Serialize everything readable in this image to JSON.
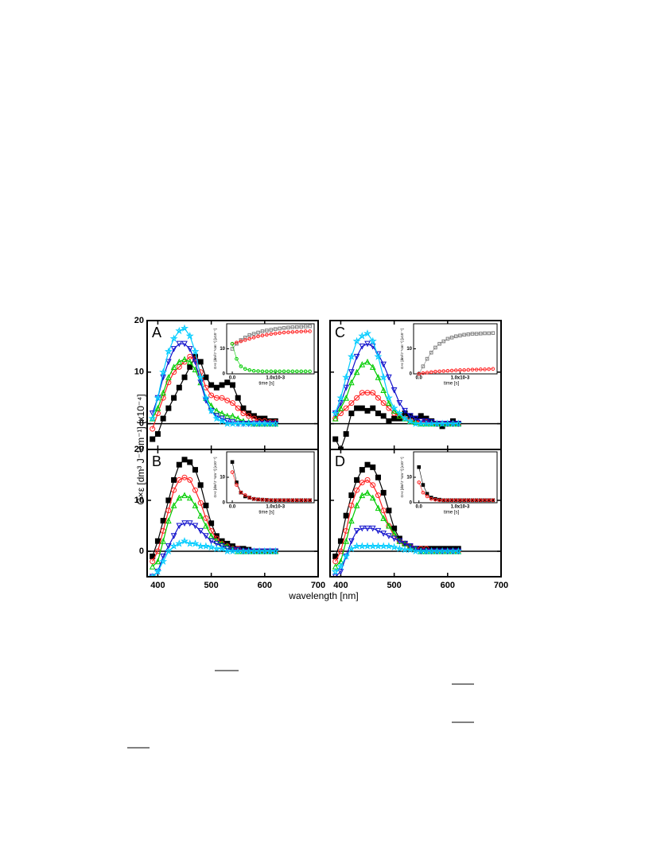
{
  "figure": {
    "xlabel": "wavelength [nm]",
    "ylabel": "G×ε [dm³ J⁻¹cm⁻¹] [x10⁻⁴]"
  },
  "chart_data": [
    {
      "type": "line",
      "label": "A",
      "xlim": [
        380,
        700
      ],
      "ylim": [
        -5,
        20
      ],
      "yticks": [
        0,
        10,
        20
      ],
      "x": [
        390,
        400,
        410,
        420,
        430,
        440,
        450,
        460,
        470,
        480,
        490,
        500,
        510,
        520,
        530,
        540,
        550,
        560,
        570,
        580,
        590,
        600,
        610,
        620
      ],
      "series": [
        {
          "color": "#000000",
          "marker": "square",
          "values": [
            -3,
            -2,
            1,
            3,
            5,
            7,
            9,
            11,
            13,
            12,
            9,
            7.5,
            7,
            7.5,
            8,
            7.5,
            5,
            3,
            2,
            1.5,
            1,
            1,
            0.5,
            0.5
          ]
        },
        {
          "color": "#ff2020",
          "marker": "circle",
          "values": [
            -1,
            2,
            5,
            8,
            10,
            11,
            12,
            13,
            12.5,
            10,
            7,
            5.5,
            5,
            5,
            4.5,
            4,
            3,
            2,
            1.5,
            1,
            0.5,
            0.5,
            0.3,
            0.3
          ]
        },
        {
          "color": "#00cc00",
          "marker": "triangle",
          "values": [
            1,
            3,
            6,
            9,
            11,
            12,
            12.5,
            12,
            10.5,
            8,
            5,
            3.5,
            2.5,
            2,
            1.5,
            1.5,
            1,
            0.5,
            0.3,
            0,
            0,
            0,
            0,
            0
          ]
        },
        {
          "color": "#1010cc",
          "marker": "down",
          "values": [
            2,
            5,
            9,
            12,
            14.5,
            15.5,
            15.5,
            14.5,
            12,
            8,
            4.5,
            2.5,
            1.5,
            1,
            0.5,
            0.3,
            0,
            0,
            0,
            0,
            0,
            0,
            0,
            0
          ]
        },
        {
          "color": "#00ccff",
          "marker": "star",
          "values": [
            1,
            5,
            10,
            14,
            16.5,
            18,
            18.5,
            17,
            14,
            9,
            5,
            2.5,
            1,
            0.5,
            0,
            0,
            0,
            0,
            0,
            0,
            0,
            0,
            0,
            0
          ]
        }
      ],
      "inset": {
        "xlabel": "time [s]",
        "ylabel": "G×ε [dm³J⁻¹cm⁻¹] [x10⁻⁴]",
        "xlim": [
          -0.00013,
          0.0019
        ],
        "ylim": [
          0,
          20
        ],
        "xticks": [
          {
            "value": 0,
            "label": "0.0"
          },
          {
            "value": 0.001,
            "label": "1.0x10-3"
          }
        ],
        "yticks": [
          0,
          10
        ],
        "x": [
          0,
          0.0001,
          0.0002,
          0.0003,
          0.0004,
          0.0005,
          0.0006,
          0.0007,
          0.0008,
          0.0009,
          0.001,
          0.0011,
          0.0012,
          0.0013,
          0.0014,
          0.0015,
          0.0016,
          0.0017,
          0.0018
        ],
        "series": [
          {
            "color": "#808080",
            "marker": "square",
            "values": [
              10,
              12,
              13.5,
              14.5,
              15.5,
              16,
              16.5,
              17,
              17.3,
              17.6,
              17.9,
              18.1,
              18.3,
              18.5,
              18.6,
              18.7,
              18.8,
              18.9,
              19
            ]
          },
          {
            "color": "#ff2020",
            "marker": "circle",
            "values": [
              12,
              12.5,
              13,
              13.5,
              14,
              14.5,
              15,
              15.3,
              15.6,
              15.9,
              16.1,
              16.3,
              16.5,
              16.6,
              16.7,
              16.8,
              16.9,
              17,
              17
            ]
          },
          {
            "color": "#00cc00",
            "marker": "circle",
            "values": [
              12,
              6,
              3,
              2,
              1.5,
              1.2,
              1.1,
              1,
              1,
              1,
              1,
              1,
              1,
              1,
              1,
              1,
              1,
              1,
              1
            ]
          }
        ]
      }
    },
    {
      "type": "line",
      "label": "B",
      "xlim": [
        380,
        700
      ],
      "ylim": [
        -5,
        20
      ],
      "yticks": [
        0,
        10,
        20
      ],
      "xticks": [
        400,
        500,
        600,
        700
      ],
      "x": [
        390,
        400,
        410,
        420,
        430,
        440,
        450,
        460,
        470,
        480,
        490,
        500,
        510,
        520,
        530,
        540,
        550,
        560,
        570,
        580,
        590,
        600,
        610,
        620
      ],
      "series": [
        {
          "color": "#000000",
          "marker": "square",
          "values": [
            -1,
            2,
            6,
            10,
            14,
            17,
            18,
            17.5,
            16,
            13,
            9,
            5.5,
            3,
            2,
            1.5,
            1,
            0.5,
            0.5,
            0.3,
            0,
            0,
            0,
            0,
            0
          ]
        },
        {
          "color": "#ff2020",
          "marker": "circle",
          "values": [
            -2,
            0,
            4,
            8,
            12,
            14,
            14.5,
            14,
            12,
            9.5,
            6.5,
            4,
            2.5,
            1.5,
            1,
            0.5,
            0.5,
            0,
            0,
            0,
            0,
            0,
            0,
            0
          ]
        },
        {
          "color": "#00cc00",
          "marker": "triangle",
          "values": [
            -3,
            -2,
            2,
            6,
            9,
            10.5,
            11,
            10.5,
            9,
            7,
            5,
            3,
            2,
            1.5,
            1,
            0.5,
            0,
            0,
            0,
            0,
            0,
            0,
            0,
            0
          ]
        },
        {
          "color": "#1010cc",
          "marker": "down",
          "values": [
            -5,
            -4,
            -1,
            1,
            3,
            5,
            5.5,
            5.5,
            5,
            4,
            3,
            2,
            1.5,
            1,
            0.5,
            0.3,
            0.3,
            0,
            0,
            0,
            0,
            0,
            0,
            0
          ]
        },
        {
          "color": "#00ccff",
          "marker": "star",
          "values": [
            -5,
            -4,
            -2,
            0,
            1,
            1.5,
            2,
            1.5,
            1.5,
            1,
            1,
            0.8,
            0.5,
            0.5,
            0,
            0,
            0,
            0,
            0,
            0,
            0,
            0,
            0,
            0
          ]
        }
      ],
      "inset": {
        "xlabel": "time [s]",
        "ylabel": "G×ε [dm³J⁻¹cm⁻¹] [x10⁻⁴]",
        "xlim": [
          -0.00013,
          0.0019
        ],
        "ylim": [
          0,
          20
        ],
        "xticks": [
          {
            "value": 0,
            "label": "0.0"
          },
          {
            "value": 0.001,
            "label": "1.0x10-3"
          }
        ],
        "yticks": [
          0,
          10
        ],
        "x": [
          0,
          0.0001,
          0.0002,
          0.0003,
          0.0004,
          0.0005,
          0.0006,
          0.0007,
          0.0008,
          0.0009,
          0.001,
          0.0011,
          0.0012,
          0.0013,
          0.0014,
          0.0015,
          0.0016,
          0.0017,
          0.0018
        ],
        "series": [
          {
            "color": "#000000",
            "marker": "square",
            "values": [
              16,
              8,
              4,
              2.5,
              2,
              1.5,
              1.3,
              1.2,
              1.1,
              1,
              1,
              1,
              1,
              1,
              1,
              1,
              1,
              1,
              1
            ]
          },
          {
            "color": "#ff2020",
            "marker": "circle",
            "values": [
              12,
              7,
              4,
              3,
              2,
              1.5,
              1.3,
              1.2,
              1.1,
              1,
              1,
              1,
              1,
              1,
              1,
              1,
              1,
              1,
              1
            ]
          }
        ]
      }
    },
    {
      "type": "line",
      "label": "C",
      "xlim": [
        380,
        700
      ],
      "ylim": [
        -5,
        20
      ],
      "x": [
        390,
        400,
        410,
        420,
        430,
        440,
        450,
        460,
        470,
        480,
        490,
        500,
        510,
        520,
        530,
        540,
        550,
        560,
        570,
        580,
        590,
        600,
        610,
        620
      ],
      "series": [
        {
          "color": "#000000",
          "marker": "square",
          "values": [
            -3,
            -5,
            -2,
            2,
            3,
            3,
            2.5,
            3,
            2,
            1.5,
            0.5,
            1,
            1,
            2,
            1.5,
            1,
            1.5,
            1,
            0.5,
            0,
            -0.5,
            0,
            0.5,
            0
          ]
        },
        {
          "color": "#ff2020",
          "marker": "circle",
          "values": [
            1,
            2,
            3,
            4,
            5,
            6,
            6,
            6,
            5,
            4,
            3,
            2,
            1.5,
            1,
            0.5,
            0.5,
            0.5,
            0.3,
            0,
            0,
            0,
            0,
            0,
            0
          ]
        },
        {
          "color": "#00cc00",
          "marker": "triangle",
          "values": [
            1,
            3,
            5,
            8,
            10,
            11.5,
            12,
            11,
            9,
            6.5,
            4,
            2.5,
            1.5,
            1,
            0.5,
            0.3,
            0,
            0,
            0,
            0,
            0,
            0,
            0,
            0
          ]
        },
        {
          "color": "#1010cc",
          "marker": "down",
          "values": [
            2,
            4,
            7,
            10,
            13,
            15,
            15.5,
            15,
            13.5,
            11.5,
            9,
            6.5,
            4,
            2.5,
            1.5,
            1,
            0.5,
            0.5,
            0.3,
            0,
            0,
            0,
            0,
            0
          ]
        },
        {
          "color": "#00ccff",
          "marker": "star",
          "values": [
            2,
            5,
            9,
            13,
            16,
            17,
            17.5,
            16,
            13,
            9,
            5,
            3,
            2,
            1,
            0.5,
            0,
            0,
            0,
            0,
            0,
            0,
            0,
            0,
            0
          ]
        }
      ],
      "inset": {
        "xlabel": "time [s]",
        "ylabel": "G×ε [dm³J⁻¹cm⁻¹] [x10⁻⁴]",
        "xlim": [
          -0.00013,
          0.0019
        ],
        "ylim": [
          0,
          20
        ],
        "xticks": [
          {
            "value": 0,
            "label": "0.0"
          },
          {
            "value": 0.001,
            "label": "1.0x10-3"
          }
        ],
        "yticks": [
          0,
          10
        ],
        "x": [
          0,
          0.0001,
          0.0002,
          0.0003,
          0.0004,
          0.0005,
          0.0006,
          0.0007,
          0.0008,
          0.0009,
          0.001,
          0.0011,
          0.0012,
          0.0013,
          0.0014,
          0.0015,
          0.0016,
          0.0017,
          0.0018
        ],
        "series": [
          {
            "color": "#808080",
            "marker": "square",
            "values": [
              0,
              3,
              6,
              8.5,
              10.5,
              12,
              13,
              14,
              14.5,
              15,
              15.3,
              15.6,
              15.8,
              16,
              16,
              16.1,
              16.2,
              16.2,
              16.3
            ]
          },
          {
            "color": "#ff2020",
            "marker": "circle",
            "values": [
              0,
              0.3,
              0.5,
              0.7,
              0.9,
              1,
              1.1,
              1.2,
              1.3,
              1.4,
              1.5,
              1.5,
              1.6,
              1.7,
              1.7,
              1.8,
              1.8,
              1.9,
              2
            ]
          }
        ]
      }
    },
    {
      "type": "line",
      "label": "D",
      "xlim": [
        380,
        700
      ],
      "ylim": [
        -5,
        20
      ],
      "xticks": [
        400,
        500,
        600,
        700
      ],
      "x": [
        390,
        400,
        410,
        420,
        430,
        440,
        450,
        460,
        470,
        480,
        490,
        500,
        510,
        520,
        530,
        540,
        550,
        560,
        570,
        580,
        590,
        600,
        610,
        620
      ],
      "series": [
        {
          "color": "#000000",
          "marker": "square",
          "values": [
            -1,
            2,
            7,
            11,
            14,
            16,
            17,
            16.5,
            14.5,
            11.5,
            8,
            4.5,
            2.5,
            1.5,
            1,
            0.5,
            0.5,
            0.5,
            0.5,
            0.5,
            0.5,
            0.5,
            0.5,
            0.5
          ]
        },
        {
          "color": "#ff2020",
          "marker": "circle",
          "values": [
            -2,
            0,
            4,
            9,
            12,
            13.5,
            14,
            13,
            11,
            8,
            5,
            3,
            2,
            1.5,
            1,
            0.5,
            0.5,
            0.5,
            0,
            0,
            0,
            0,
            0,
            0
          ]
        },
        {
          "color": "#00cc00",
          "marker": "triangle",
          "values": [
            -3,
            -2,
            2,
            6,
            9,
            11,
            11.5,
            10.5,
            8.5,
            6.5,
            5,
            3.5,
            2,
            1.5,
            1,
            0.5,
            0,
            0,
            0,
            0,
            0,
            0,
            0,
            0
          ]
        },
        {
          "color": "#1010cc",
          "marker": "down",
          "values": [
            -5,
            -4,
            -1,
            2,
            4,
            4.5,
            4.5,
            4.5,
            4,
            3.5,
            3,
            2.5,
            2,
            1.5,
            1,
            0.5,
            0,
            0,
            0,
            0,
            0,
            0,
            0,
            0
          ]
        },
        {
          "color": "#00ccff",
          "marker": "star",
          "values": [
            -4,
            -3,
            -1,
            0.5,
            1,
            1,
            1,
            1,
            1,
            1,
            1,
            0.8,
            0.5,
            0.3,
            0.3,
            0,
            0,
            0,
            0,
            0,
            0,
            0,
            0,
            0
          ]
        }
      ],
      "inset": {
        "xlabel": "time [s]",
        "ylabel": "G×ε [dm³J⁻¹cm⁻¹] [x10⁻⁴]",
        "xlim": [
          -0.00013,
          0.0019
        ],
        "ylim": [
          0,
          20
        ],
        "xticks": [
          {
            "value": 0,
            "label": "0.0"
          },
          {
            "value": 0.001,
            "label": "1.0x10-3"
          }
        ],
        "yticks": [
          0,
          10
        ],
        "x": [
          0,
          0.0001,
          0.0002,
          0.0003,
          0.0004,
          0.0005,
          0.0006,
          0.0007,
          0.0008,
          0.0009,
          0.001,
          0.0011,
          0.0012,
          0.0013,
          0.0014,
          0.0015,
          0.0016,
          0.0017,
          0.0018
        ],
        "series": [
          {
            "color": "#000000",
            "marker": "square",
            "values": [
              14,
              7,
              3.5,
              2,
              1.5,
              1.2,
              1,
              1,
              1,
              1,
              1,
              1,
              1,
              1,
              1,
              1,
              1,
              1,
              1
            ]
          },
          {
            "color": "#ff2020",
            "marker": "circle",
            "values": [
              8,
              4,
              2.5,
              1.5,
              1.2,
              1,
              1,
              1,
              1,
              1,
              1,
              1,
              1,
              1,
              1,
              1,
              1,
              1,
              1
            ]
          }
        ]
      }
    }
  ]
}
